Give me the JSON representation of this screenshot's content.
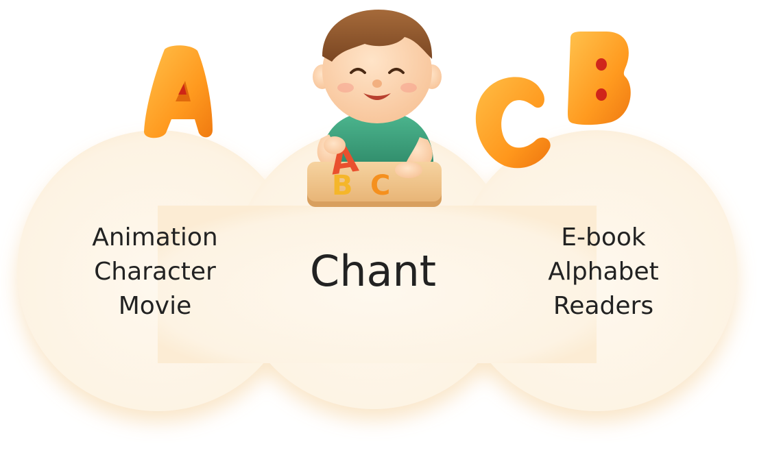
{
  "sections": {
    "left": {
      "lines": [
        "Animation",
        "Character",
        "Movie"
      ]
    },
    "center": {
      "label": "Chant"
    },
    "right": {
      "lines": [
        "E-book",
        "Alphabet",
        "Readers"
      ]
    }
  },
  "decorations": {
    "letters": [
      "A",
      "C",
      "B"
    ],
    "puzzle_letters": [
      "A",
      "B",
      "C"
    ],
    "icons": [
      "letter-a-icon",
      "letter-c-icon",
      "letter-b-icon",
      "child-illustration",
      "abc-puzzle-icon"
    ]
  },
  "colors": {
    "cloud": "#FEF8EE",
    "letter_orange": "#FF9A1F",
    "text": "#222222",
    "shirt": "#3FA07E",
    "puzzle_board": "#F0C48A"
  }
}
